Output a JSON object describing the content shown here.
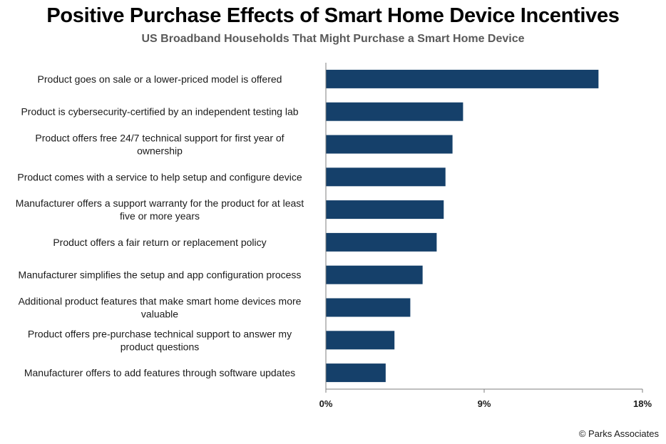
{
  "title": "Positive Purchase Effects of Smart Home Device Incentives",
  "subtitle": "US Broadband Households That Might Purchase a Smart Home Device",
  "source": "© Parks Associates",
  "colors": {
    "bar": "#15406a",
    "axis": "#7f7f7f"
  },
  "chart_data": {
    "type": "bar",
    "orientation": "horizontal",
    "categories": [
      [
        "Product goes on sale or a lower-priced model is offered"
      ],
      [
        "Product is cybersecurity-certified by an independent testing lab"
      ],
      [
        "Product offers free 24/7 technical support for first year of",
        "ownership"
      ],
      [
        "Product comes with a service to help setup and configure device"
      ],
      [
        "Manufacturer offers a support warranty for the product for at least",
        "five or more years"
      ],
      [
        "Product offers a fair return or replacement policy"
      ],
      [
        "Manufacturer simplifies the setup and app configuration process"
      ],
      [
        "Additional product features that make smart home devices more",
        "valuable"
      ],
      [
        "Product offers pre-purchase technical support to answer my",
        "product questions"
      ],
      [
        "Manufacturer offers to add features through software updates"
      ]
    ],
    "values": [
      15.5,
      7.8,
      7.2,
      6.8,
      6.7,
      6.3,
      5.5,
      4.8,
      3.9,
      3.4
    ],
    "xlim": [
      0,
      18
    ],
    "ticks": [
      0,
      9,
      18
    ],
    "tick_labels": [
      "0%",
      "9%",
      "18%"
    ],
    "title": "Positive Purchase Effects of Smart Home Device Incentives",
    "subtitle": "US Broadband Households That Might Purchase a Smart Home Device",
    "xlabel": "",
    "ylabel": "",
    "grid": false,
    "legend": "none"
  }
}
